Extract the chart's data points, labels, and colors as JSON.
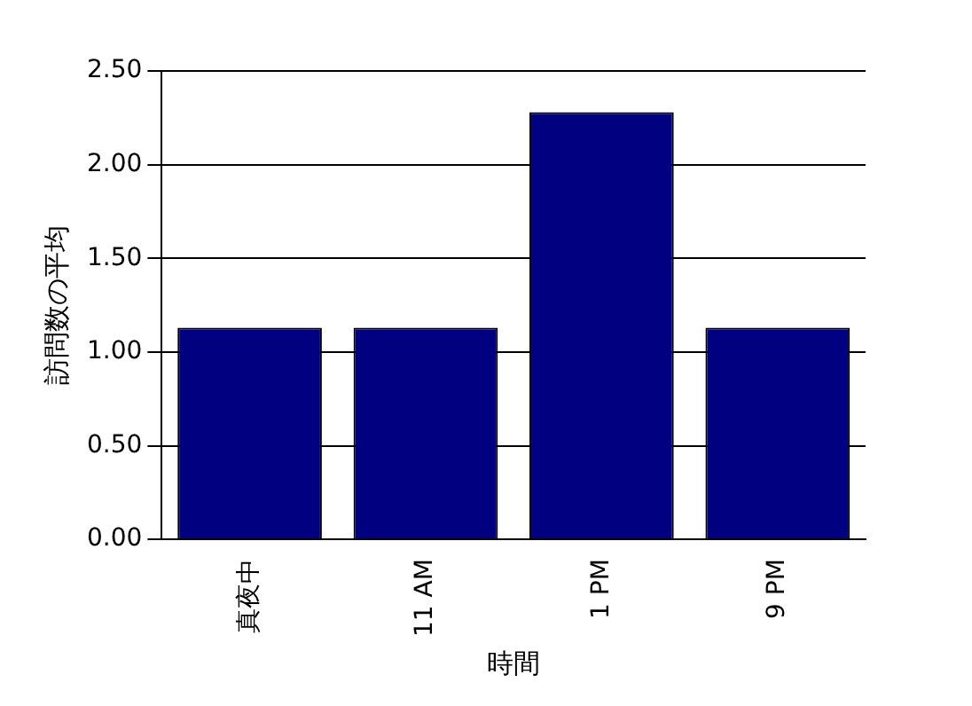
{
  "chart_data": {
    "type": "bar",
    "xlabel": "時間",
    "ylabel": "訪問数の平均",
    "categories": [
      "真夜中",
      "11 AM",
      "1 PM",
      "9 PM"
    ],
    "values": [
      1.13,
      1.13,
      2.28,
      1.13
    ],
    "color": "#000080",
    "ylim": [
      0,
      2.5
    ],
    "yticks": [
      {
        "value": 0,
        "label": "0.00"
      },
      {
        "value": 0.5,
        "label": "0.50"
      },
      {
        "value": 1,
        "label": "1.00"
      },
      {
        "value": 1.5,
        "label": "1.50"
      },
      {
        "value": 2,
        "label": "2.00"
      },
      {
        "value": 2.5,
        "label": "2.50"
      }
    ],
    "grid": "y",
    "legend": false
  }
}
